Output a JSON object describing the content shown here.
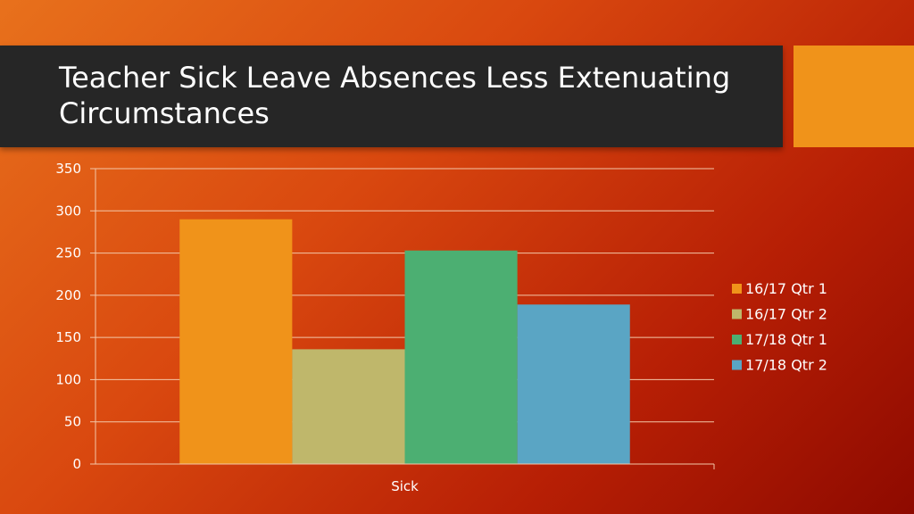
{
  "slide": {
    "title": "Teacher Sick Leave Absences Less Extenuating Circumstances",
    "colors": {
      "title_bar": "#262626",
      "accent": "#f0931a",
      "background_start": "#e8711c",
      "background_end": "#8e0a00"
    }
  },
  "chart_data": {
    "type": "bar",
    "title": "",
    "xlabel": "",
    "ylabel": "",
    "categories": [
      "Sick"
    ],
    "series": [
      {
        "name": "16/17 Qtr 1",
        "values": [
          290
        ],
        "color": "#f0931a"
      },
      {
        "name": "16/17 Qtr 2",
        "values": [
          136
        ],
        "color": "#bfb76b"
      },
      {
        "name": "17/18 Qtr 1",
        "values": [
          253
        ],
        "color": "#4caf72"
      },
      {
        "name": "17/18 Qtr 2",
        "values": [
          189
        ],
        "color": "#5aa5c4"
      }
    ],
    "ylim": [
      0,
      350
    ],
    "yticks": [
      "0",
      "50",
      "100",
      "150",
      "200",
      "250",
      "300",
      "350"
    ],
    "grid": true,
    "legend_position": "right"
  }
}
